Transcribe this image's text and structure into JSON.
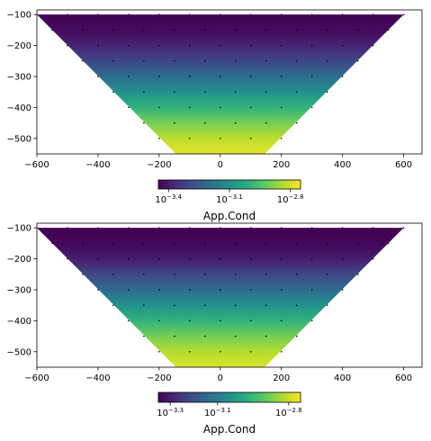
{
  "chart_data": [
    {
      "type": "heatmap",
      "title": "",
      "xlabel": "",
      "ylabel": "",
      "xlim": [
        -600,
        660
      ],
      "ylim": [
        -550,
        -85
      ],
      "xticks": [
        -600,
        -400,
        -200,
        0,
        200,
        400,
        600
      ],
      "yticks": [
        -100,
        -200,
        -300,
        -400,
        -500
      ],
      "xtick_labels": [
        "−600",
        "−400",
        "−200",
        "0",
        "200",
        "400",
        "600"
      ],
      "ytick_labels": [
        "−100",
        "−200",
        "−300",
        "−400",
        "−500"
      ],
      "region": {
        "top_y": -100,
        "top_x": [
          -600,
          600
        ],
        "bottom_y": -550,
        "bottom_x": [
          -145,
          145
        ]
      },
      "colormap": "viridis",
      "log_scale": true,
      "color_range": [
        -3.45,
        -2.75
      ],
      "field_profile": {
        "depth": [
          -100,
          -150,
          -200,
          -250,
          -300,
          -350,
          -400,
          -450,
          -500,
          -550
        ],
        "log10_value": [
          -3.45,
          -3.43,
          -3.38,
          -3.3,
          -3.2,
          -3.1,
          -3.0,
          -2.9,
          -2.82,
          -2.78
        ]
      },
      "colorbar": {
        "label": "App.Cond",
        "range": [
          -3.45,
          -2.75
        ],
        "ticks": [
          {
            "value": -3.4,
            "base": "10",
            "exp": "−3.4"
          },
          {
            "value": -3.1,
            "base": "10",
            "exp": "−3.1"
          },
          {
            "value": -2.8,
            "base": "10",
            "exp": "−2.8"
          }
        ]
      },
      "points": [
        [
          -600,
          -100
        ],
        [
          -500,
          -100
        ],
        [
          -400,
          -100
        ],
        [
          -300,
          -100
        ],
        [
          -200,
          -100
        ],
        [
          -100,
          -100
        ],
        [
          0,
          -100
        ],
        [
          100,
          -100
        ],
        [
          200,
          -100
        ],
        [
          300,
          -100
        ],
        [
          400,
          -100
        ],
        [
          500,
          -100
        ],
        [
          600,
          -100
        ],
        [
          -550,
          -150
        ],
        [
          -450,
          -150
        ],
        [
          -350,
          -150
        ],
        [
          -250,
          -150
        ],
        [
          -150,
          -150
        ],
        [
          -50,
          -150
        ],
        [
          50,
          -150
        ],
        [
          150,
          -150
        ],
        [
          250,
          -150
        ],
        [
          350,
          -150
        ],
        [
          450,
          -150
        ],
        [
          550,
          -150
        ],
        [
          -500,
          -200
        ],
        [
          -400,
          -200
        ],
        [
          -300,
          -200
        ],
        [
          -200,
          -200
        ],
        [
          -100,
          -200
        ],
        [
          0,
          -200
        ],
        [
          100,
          -200
        ],
        [
          200,
          -200
        ],
        [
          300,
          -200
        ],
        [
          400,
          -200
        ],
        [
          500,
          -200
        ],
        [
          -450,
          -250
        ],
        [
          -350,
          -250
        ],
        [
          -250,
          -250
        ],
        [
          -150,
          -250
        ],
        [
          -50,
          -250
        ],
        [
          50,
          -250
        ],
        [
          150,
          -250
        ],
        [
          250,
          -250
        ],
        [
          350,
          -250
        ],
        [
          450,
          -250
        ],
        [
          -400,
          -300
        ],
        [
          -300,
          -300
        ],
        [
          -200,
          -300
        ],
        [
          -100,
          -300
        ],
        [
          0,
          -300
        ],
        [
          100,
          -300
        ],
        [
          200,
          -300
        ],
        [
          300,
          -300
        ],
        [
          400,
          -300
        ],
        [
          -350,
          -350
        ],
        [
          -250,
          -350
        ],
        [
          -150,
          -350
        ],
        [
          -50,
          -350
        ],
        [
          50,
          -350
        ],
        [
          150,
          -350
        ],
        [
          250,
          -350
        ],
        [
          350,
          -350
        ],
        [
          -300,
          -400
        ],
        [
          -200,
          -400
        ],
        [
          -100,
          -400
        ],
        [
          0,
          -400
        ],
        [
          100,
          -400
        ],
        [
          200,
          -400
        ],
        [
          300,
          -400
        ],
        [
          -250,
          -450
        ],
        [
          -150,
          -450
        ],
        [
          -50,
          -450
        ],
        [
          50,
          -450
        ],
        [
          150,
          -450
        ],
        [
          250,
          -450
        ],
        [
          -200,
          -500
        ],
        [
          -100,
          -500
        ],
        [
          0,
          -500
        ],
        [
          100,
          -500
        ],
        [
          200,
          -500
        ]
      ]
    },
    {
      "type": "heatmap",
      "title": "",
      "xlabel": "",
      "ylabel": "",
      "xlim": [
        -600,
        660
      ],
      "ylim": [
        -550,
        -85
      ],
      "xticks": [
        -600,
        -400,
        -200,
        0,
        200,
        400,
        600
      ],
      "yticks": [
        -100,
        -200,
        -300,
        -400,
        -500
      ],
      "xtick_labels": [
        "−600",
        "−400",
        "−200",
        "0",
        "200",
        "400",
        "600"
      ],
      "ytick_labels": [
        "−100",
        "−200",
        "−300",
        "−400",
        "−500"
      ],
      "region": {
        "top_y": -100,
        "top_x": [
          -600,
          600
        ],
        "bottom_y": -550,
        "bottom_x": [
          -145,
          145
        ]
      },
      "colormap": "viridis",
      "log_scale": true,
      "color_range": [
        -3.35,
        -2.75
      ],
      "field_profile": {
        "depth": [
          -100,
          -150,
          -200,
          -250,
          -300,
          -350,
          -400,
          -450,
          -500,
          -550
        ],
        "log10_value": [
          -3.35,
          -3.34,
          -3.3,
          -3.22,
          -3.14,
          -3.05,
          -2.96,
          -2.88,
          -2.82,
          -2.78
        ]
      },
      "colorbar": {
        "label": "App.Cond",
        "range": [
          -3.35,
          -2.75
        ],
        "ticks": [
          {
            "value": -3.3,
            "base": "10",
            "exp": "−3.3"
          },
          {
            "value": -3.1,
            "base": "10",
            "exp": "−3.1"
          },
          {
            "value": -2.8,
            "base": "10",
            "exp": "−2.8"
          }
        ]
      },
      "points": [
        [
          -600,
          -100
        ],
        [
          -500,
          -100
        ],
        [
          -400,
          -100
        ],
        [
          -300,
          -100
        ],
        [
          -200,
          -100
        ],
        [
          -100,
          -100
        ],
        [
          0,
          -100
        ],
        [
          100,
          -100
        ],
        [
          200,
          -100
        ],
        [
          300,
          -100
        ],
        [
          400,
          -100
        ],
        [
          500,
          -100
        ],
        [
          600,
          -100
        ],
        [
          -550,
          -150
        ],
        [
          -450,
          -150
        ],
        [
          -350,
          -150
        ],
        [
          -250,
          -150
        ],
        [
          -150,
          -150
        ],
        [
          -50,
          -150
        ],
        [
          50,
          -150
        ],
        [
          150,
          -150
        ],
        [
          250,
          -150
        ],
        [
          350,
          -150
        ],
        [
          450,
          -150
        ],
        [
          550,
          -150
        ],
        [
          -500,
          -200
        ],
        [
          -400,
          -200
        ],
        [
          -300,
          -200
        ],
        [
          -200,
          -200
        ],
        [
          -100,
          -200
        ],
        [
          0,
          -200
        ],
        [
          100,
          -200
        ],
        [
          200,
          -200
        ],
        [
          300,
          -200
        ],
        [
          400,
          -200
        ],
        [
          500,
          -200
        ],
        [
          -450,
          -250
        ],
        [
          -350,
          -250
        ],
        [
          -250,
          -250
        ],
        [
          -150,
          -250
        ],
        [
          -50,
          -250
        ],
        [
          50,
          -250
        ],
        [
          150,
          -250
        ],
        [
          250,
          -250
        ],
        [
          350,
          -250
        ],
        [
          450,
          -250
        ],
        [
          -400,
          -300
        ],
        [
          -300,
          -300
        ],
        [
          -200,
          -300
        ],
        [
          -100,
          -300
        ],
        [
          0,
          -300
        ],
        [
          100,
          -300
        ],
        [
          200,
          -300
        ],
        [
          300,
          -300
        ],
        [
          400,
          -300
        ],
        [
          -350,
          -350
        ],
        [
          -250,
          -350
        ],
        [
          -150,
          -350
        ],
        [
          -50,
          -350
        ],
        [
          50,
          -350
        ],
        [
          150,
          -350
        ],
        [
          250,
          -350
        ],
        [
          350,
          -350
        ],
        [
          -300,
          -400
        ],
        [
          -200,
          -400
        ],
        [
          -100,
          -400
        ],
        [
          0,
          -400
        ],
        [
          100,
          -400
        ],
        [
          200,
          -400
        ],
        [
          300,
          -400
        ],
        [
          -250,
          -450
        ],
        [
          -150,
          -450
        ],
        [
          -50,
          -450
        ],
        [
          50,
          -450
        ],
        [
          150,
          -450
        ],
        [
          250,
          -450
        ],
        [
          -200,
          -500
        ],
        [
          -100,
          -500
        ],
        [
          0,
          -500
        ],
        [
          100,
          -500
        ],
        [
          200,
          -500
        ]
      ]
    }
  ]
}
